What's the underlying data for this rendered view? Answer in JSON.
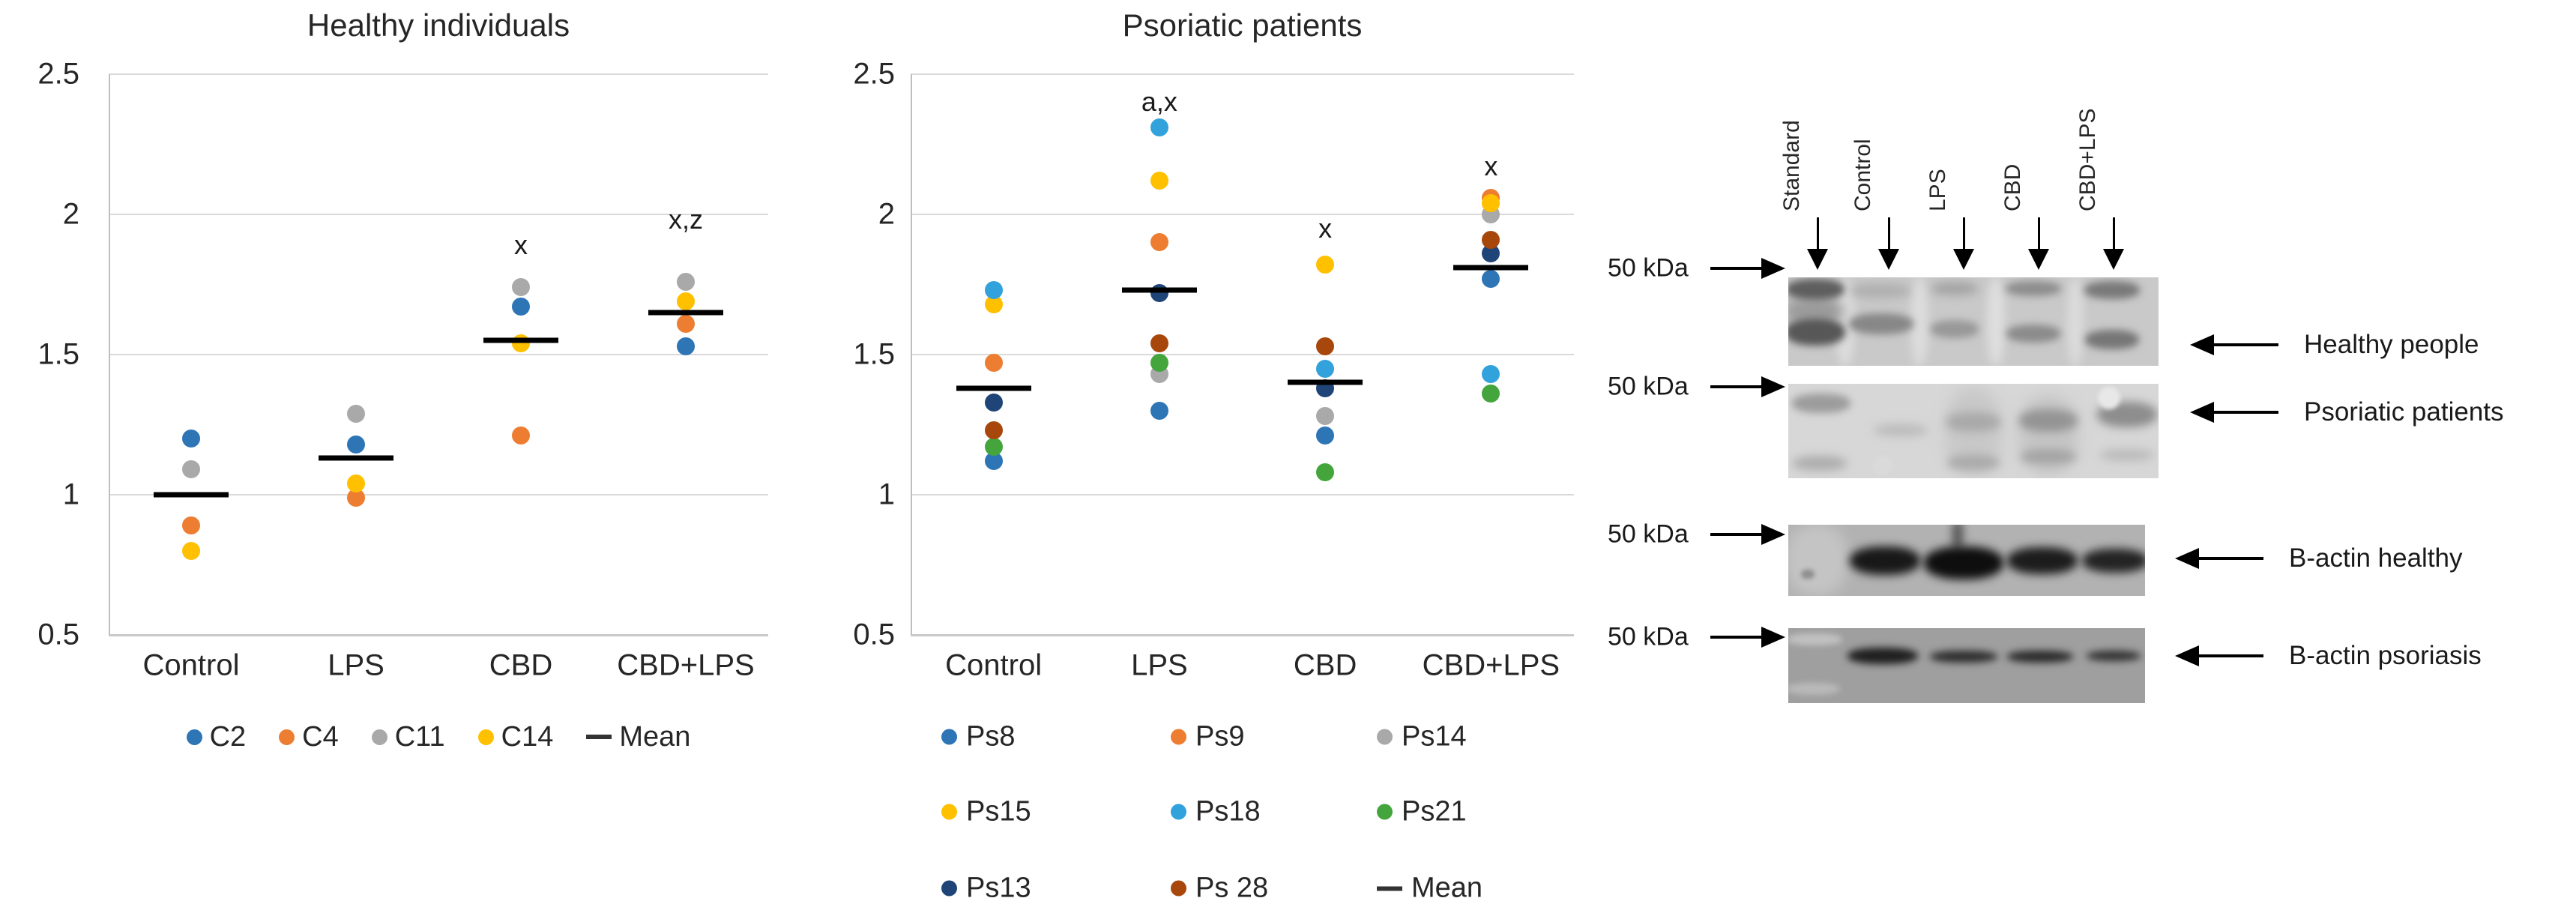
{
  "colors": {
    "blue": "#2E75B6",
    "orange": "#ED7D31",
    "gray": "#A9A9A9",
    "yellow": "#FFC000",
    "lightblue": "#31A2DC",
    "green": "#43A53C",
    "navy": "#1F4477",
    "rust": "#A8470C",
    "mean": "#000000"
  },
  "chart_data": [
    {
      "type": "scatter",
      "id": "healthy",
      "title": "Healthy individuals",
      "categories": [
        "Control",
        "LPS",
        "CBD",
        "CBD+LPS"
      ],
      "ylim": [
        0.5,
        2.5
      ],
      "yticks": [
        {
          "label": "2.5",
          "value": 2.5
        },
        {
          "label": "2",
          "value": 2.0
        },
        {
          "label": "1.5",
          "value": 1.5
        },
        {
          "label": "1",
          "value": 1.0
        },
        {
          "label": "0.5",
          "value": 0.5
        }
      ],
      "grid": true,
      "legend_position": "bottom",
      "series": [
        {
          "name": "C2",
          "color": "blue",
          "values": [
            1.2,
            1.18,
            1.67,
            1.53
          ]
        },
        {
          "name": "C4",
          "color": "orange",
          "values": [
            0.89,
            0.99,
            1.21,
            1.61
          ]
        },
        {
          "name": "C11",
          "color": "gray",
          "values": [
            1.09,
            1.29,
            1.74,
            1.76
          ]
        },
        {
          "name": "C14",
          "color": "yellow",
          "values": [
            0.8,
            1.04,
            1.54,
            1.69
          ]
        }
      ],
      "mean": {
        "name": "Mean",
        "values": [
          1.0,
          1.13,
          1.55,
          1.65
        ]
      },
      "annotations": [
        {
          "category": "CBD",
          "text": "x",
          "y_value": 1.89
        },
        {
          "category": "CBD+LPS",
          "text": "x,z",
          "y_value": 1.98
        }
      ],
      "legend_rows": [
        [
          {
            "label": "C2",
            "color": "blue"
          },
          {
            "label": "C4",
            "color": "orange"
          },
          {
            "label": "C11",
            "color": "gray"
          },
          {
            "label": "C14",
            "color": "yellow"
          },
          {
            "label": "Mean",
            "color": "mean",
            "dash": true
          }
        ]
      ]
    },
    {
      "type": "scatter",
      "id": "psoriatic",
      "title": "Psoriatic patients",
      "categories": [
        "Control",
        "LPS",
        "CBD",
        "CBD+LPS"
      ],
      "ylim": [
        0.5,
        2.5
      ],
      "yticks": [
        {
          "label": "2.5",
          "value": 2.5
        },
        {
          "label": "2",
          "value": 2.0
        },
        {
          "label": "1.5",
          "value": 1.5
        },
        {
          "label": "1",
          "value": 1.0
        },
        {
          "label": "0.5",
          "value": 0.5
        }
      ],
      "grid": true,
      "legend_position": "bottom",
      "series": [
        {
          "name": "Ps8",
          "color": "blue",
          "values": [
            1.12,
            1.3,
            1.21,
            1.77
          ]
        },
        {
          "name": "Ps9",
          "color": "orange",
          "values": [
            1.47,
            1.9,
            null,
            2.06
          ]
        },
        {
          "name": "Ps14",
          "color": "gray",
          "values": [
            null,
            1.43,
            1.28,
            2.0
          ]
        },
        {
          "name": "Ps15",
          "color": "yellow",
          "values": [
            1.68,
            2.12,
            1.82,
            2.04
          ]
        },
        {
          "name": "Ps18",
          "color": "lightblue",
          "values": [
            1.73,
            2.31,
            1.45,
            1.43
          ]
        },
        {
          "name": "Ps21",
          "color": "green",
          "values": [
            1.17,
            1.47,
            1.08,
            1.36
          ]
        },
        {
          "name": "Ps13",
          "color": "navy",
          "values": [
            1.33,
            1.72,
            1.38,
            1.86
          ]
        },
        {
          "name": "Ps28",
          "color": "rust",
          "values": [
            1.23,
            1.54,
            1.53,
            1.91
          ]
        }
      ],
      "mean": {
        "name": "Mean",
        "values": [
          1.38,
          1.73,
          1.4,
          1.81
        ]
      },
      "annotations": [
        {
          "category": "LPS",
          "text": "a,x",
          "y_value": 2.4
        },
        {
          "category": "CBD",
          "text": "x",
          "y_value": 1.95
        },
        {
          "category": "CBD+LPS",
          "text": "x",
          "y_value": 2.17
        }
      ],
      "legend_rows": [
        [
          {
            "label": "Ps8",
            "color": "blue"
          },
          {
            "label": "Ps9",
            "color": "orange"
          },
          {
            "label": "Ps14",
            "color": "gray"
          }
        ],
        [
          {
            "label": "Ps15",
            "color": "yellow"
          },
          {
            "label": "Ps18",
            "color": "lightblue"
          },
          {
            "label": "Ps21",
            "color": "green"
          }
        ],
        [
          {
            "label": "Ps13",
            "color": "navy"
          },
          {
            "label": "Ps 28",
            "color": "rust"
          },
          {
            "label": "Mean",
            "color": "mean",
            "dash": true
          }
        ]
      ]
    }
  ],
  "blot": {
    "lane_labels": [
      "Standard",
      "Control",
      "LPS",
      "CBD",
      "CBD+LPS"
    ],
    "marker_labels": [
      "50 kDa",
      "50 kDa",
      "50 kDa",
      "50 kDa"
    ],
    "row_labels": [
      "Healthy people",
      "Psoriatic patients",
      "B-actin healthy",
      "B-actin psoriasis"
    ]
  }
}
